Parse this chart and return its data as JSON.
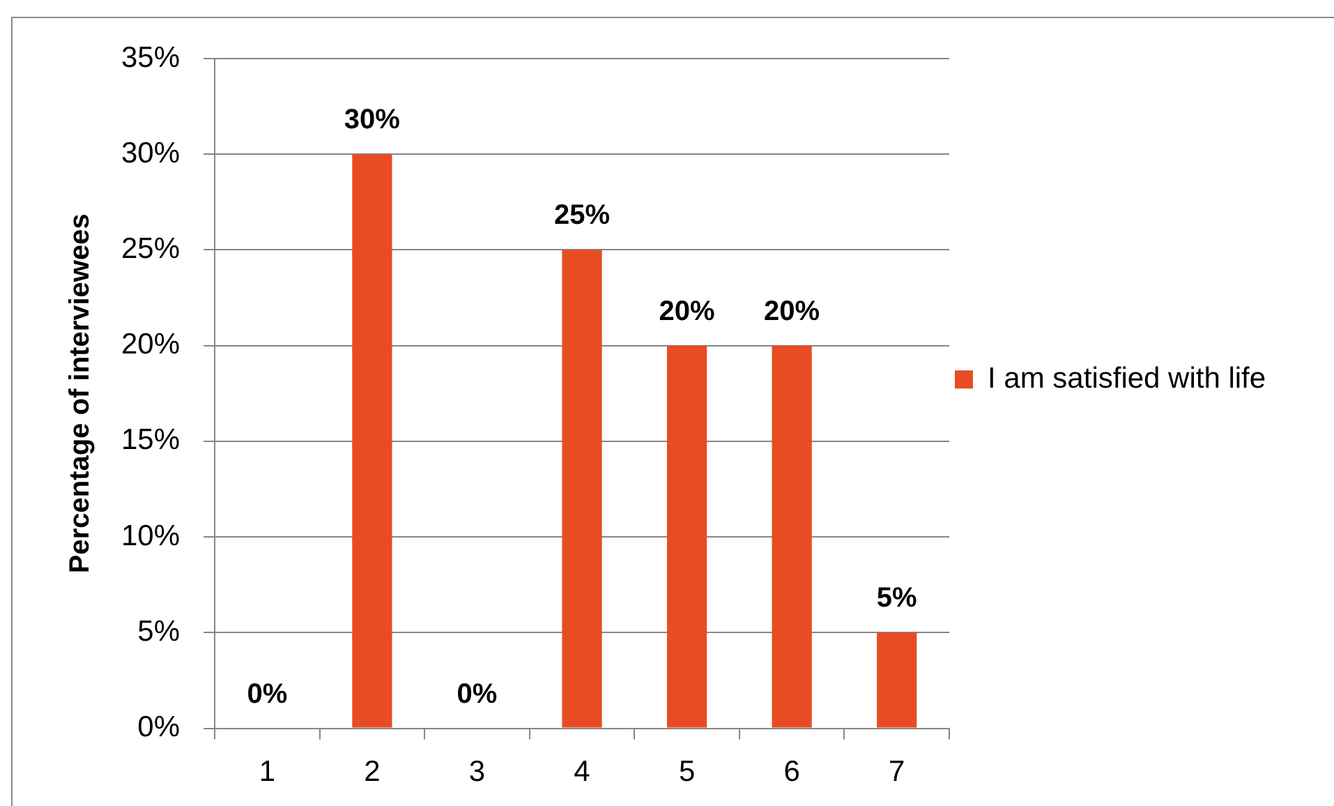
{
  "chart_data": {
    "type": "bar",
    "categories": [
      "1",
      "2",
      "3",
      "4",
      "5",
      "6",
      "7"
    ],
    "series": [
      {
        "name": "I am satisfied with life",
        "color": "#e84c22",
        "values": [
          0,
          30,
          0,
          25,
          20,
          20,
          5
        ],
        "value_labels": [
          "0%",
          "30%",
          "0%",
          "25%",
          "20%",
          "20%",
          "5%"
        ]
      }
    ],
    "ylabel": "Percentage of interviewees",
    "ylim": [
      0,
      35
    ],
    "yticks": [
      {
        "value": 0,
        "label": "0%"
      },
      {
        "value": 5,
        "label": "5%"
      },
      {
        "value": 10,
        "label": "10%"
      },
      {
        "value": 15,
        "label": "15%"
      },
      {
        "value": 20,
        "label": "20%"
      },
      {
        "value": 25,
        "label": "25%"
      },
      {
        "value": 30,
        "label": "30%"
      },
      {
        "value": 35,
        "label": "35%"
      }
    ],
    "grid": "y",
    "legend": "right"
  }
}
